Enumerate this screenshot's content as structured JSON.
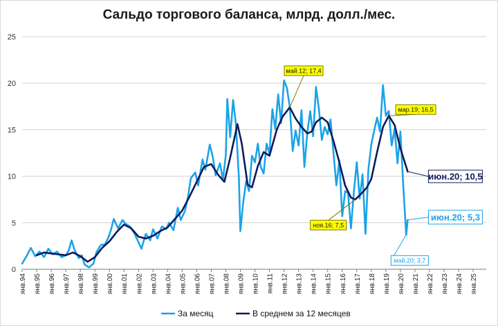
{
  "chart_data": {
    "type": "line",
    "title": "Сальдо торгового баланса, млрд. долл./мес.",
    "xlabel": "",
    "ylabel": "",
    "ylim": [
      0,
      25
    ],
    "yticks": [
      "0",
      "5",
      "10",
      "15",
      "20",
      "25"
    ],
    "xticks": [
      "янв.94",
      "янв.95",
      "янв.96",
      "янв.97",
      "янв.98",
      "янв.99",
      "янв.00",
      "янв.01",
      "янв.02",
      "янв.03",
      "янв.04",
      "янв.05",
      "янв.06",
      "янв.07",
      "янв.08",
      "янв.09",
      "янв.10",
      "янв.11",
      "янв.12",
      "янв.13",
      "янв.14",
      "янв.15",
      "янв.16",
      "янв.17",
      "янв.18",
      "янв.19",
      "янв.20",
      "янв.21",
      "янв.22",
      "янв.23",
      "янв.24",
      "янв.25"
    ],
    "grid": true,
    "legend": "bottom",
    "series": [
      {
        "name": "За месяц",
        "color": "#1aa3e8",
        "points": [
          [
            1994.0,
            0.6
          ],
          [
            1994.3,
            1.4
          ],
          [
            1994.6,
            2.3
          ],
          [
            1994.9,
            1.4
          ],
          [
            1995.2,
            1.9
          ],
          [
            1995.5,
            1.3
          ],
          [
            1995.8,
            2.2
          ],
          [
            1996.1,
            1.6
          ],
          [
            1996.4,
            1.9
          ],
          [
            1996.7,
            1.3
          ],
          [
            1997.0,
            1.5
          ],
          [
            1997.2,
            2.0
          ],
          [
            1997.4,
            3.1
          ],
          [
            1997.6,
            2.1
          ],
          [
            1997.9,
            1.2
          ],
          [
            1998.1,
            1.5
          ],
          [
            1998.3,
            0.5
          ],
          [
            1998.6,
            0.2
          ],
          [
            1998.9,
            0.6
          ],
          [
            1999.1,
            1.8
          ],
          [
            1999.4,
            2.6
          ],
          [
            1999.7,
            2.7
          ],
          [
            1999.9,
            3.3
          ],
          [
            2000.1,
            4.2
          ],
          [
            2000.3,
            5.4
          ],
          [
            2000.6,
            4.4
          ],
          [
            2000.9,
            5.3
          ],
          [
            2001.1,
            4.9
          ],
          [
            2001.4,
            4.6
          ],
          [
            2001.7,
            3.9
          ],
          [
            2002.0,
            2.9
          ],
          [
            2002.2,
            2.2
          ],
          [
            2002.5,
            3.8
          ],
          [
            2002.8,
            3.1
          ],
          [
            2003.0,
            4.3
          ],
          [
            2003.3,
            3.3
          ],
          [
            2003.6,
            4.6
          ],
          [
            2003.9,
            4.3
          ],
          [
            2004.1,
            5.0
          ],
          [
            2004.4,
            4.2
          ],
          [
            2004.7,
            6.6
          ],
          [
            2004.9,
            5.3
          ],
          [
            2005.2,
            6.3
          ],
          [
            2005.4,
            7.8
          ],
          [
            2005.6,
            9.8
          ],
          [
            2005.9,
            10.4
          ],
          [
            2006.1,
            9.0
          ],
          [
            2006.4,
            11.8
          ],
          [
            2006.6,
            10.7
          ],
          [
            2006.9,
            13.4
          ],
          [
            2007.1,
            12.1
          ],
          [
            2007.3,
            10.1
          ],
          [
            2007.6,
            11.4
          ],
          [
            2007.8,
            9.6
          ],
          [
            2008.0,
            12.3
          ],
          [
            2008.1,
            18.3
          ],
          [
            2008.3,
            14.2
          ],
          [
            2008.5,
            18.2
          ],
          [
            2008.7,
            15.5
          ],
          [
            2008.9,
            9.8
          ],
          [
            2009.0,
            4.1
          ],
          [
            2009.2,
            7.2
          ],
          [
            2009.4,
            9.5
          ],
          [
            2009.6,
            8.4
          ],
          [
            2009.8,
            12.2
          ],
          [
            2010.0,
            11.5
          ],
          [
            2010.2,
            13.5
          ],
          [
            2010.4,
            11.0
          ],
          [
            2010.6,
            10.3
          ],
          [
            2010.8,
            13.5
          ],
          [
            2011.0,
            12.4
          ],
          [
            2011.2,
            17.2
          ],
          [
            2011.4,
            15.1
          ],
          [
            2011.6,
            18.8
          ],
          [
            2011.8,
            15.7
          ],
          [
            2012.0,
            20.3
          ],
          [
            2012.2,
            19.5
          ],
          [
            2012.4,
            17.4
          ],
          [
            2012.6,
            12.7
          ],
          [
            2012.8,
            14.9
          ],
          [
            2013.0,
            13.3
          ],
          [
            2013.2,
            17.1
          ],
          [
            2013.4,
            11.0
          ],
          [
            2013.6,
            14.7
          ],
          [
            2013.8,
            17.0
          ],
          [
            2014.0,
            14.3
          ],
          [
            2014.2,
            19.6
          ],
          [
            2014.4,
            17.2
          ],
          [
            2014.6,
            13.9
          ],
          [
            2014.8,
            15.3
          ],
          [
            2015.0,
            14.5
          ],
          [
            2015.2,
            16.1
          ],
          [
            2015.4,
            12.6
          ],
          [
            2015.6,
            9.0
          ],
          [
            2015.8,
            11.7
          ],
          [
            2016.0,
            5.7
          ],
          [
            2016.2,
            8.4
          ],
          [
            2016.4,
            8.2
          ],
          [
            2016.6,
            4.4
          ],
          [
            2016.8,
            8.3
          ],
          [
            2017.0,
            11.5
          ],
          [
            2017.2,
            7.6
          ],
          [
            2017.4,
            10.2
          ],
          [
            2017.6,
            3.8
          ],
          [
            2017.8,
            10.7
          ],
          [
            2018.0,
            13.4
          ],
          [
            2018.2,
            14.9
          ],
          [
            2018.4,
            16.3
          ],
          [
            2018.6,
            14.8
          ],
          [
            2018.8,
            19.8
          ],
          [
            2019.0,
            16.5
          ],
          [
            2019.2,
            17.0
          ],
          [
            2019.4,
            13.3
          ],
          [
            2019.6,
            15.1
          ],
          [
            2019.8,
            11.4
          ],
          [
            2020.0,
            14.8
          ],
          [
            2020.2,
            8.9
          ],
          [
            2020.4,
            3.7
          ],
          [
            2020.5,
            5.3
          ]
        ]
      },
      {
        "name": "В среднем за 12 месяцев",
        "color": "#0e1a5a",
        "points": [
          [
            1995.0,
            1.5
          ],
          [
            1995.5,
            1.8
          ],
          [
            1996.0,
            1.7
          ],
          [
            1996.5,
            1.6
          ],
          [
            1997.0,
            1.5
          ],
          [
            1997.5,
            1.8
          ],
          [
            1998.0,
            1.4
          ],
          [
            1998.5,
            0.8
          ],
          [
            1999.0,
            1.3
          ],
          [
            1999.5,
            2.3
          ],
          [
            2000.0,
            3.0
          ],
          [
            2000.5,
            4.0
          ],
          [
            2001.0,
            4.8
          ],
          [
            2001.5,
            4.4
          ],
          [
            2002.0,
            3.5
          ],
          [
            2002.5,
            3.3
          ],
          [
            2003.0,
            3.6
          ],
          [
            2003.5,
            4.1
          ],
          [
            2004.0,
            4.5
          ],
          [
            2004.5,
            5.4
          ],
          [
            2005.0,
            6.3
          ],
          [
            2005.5,
            7.8
          ],
          [
            2006.0,
            9.4
          ],
          [
            2006.5,
            11.0
          ],
          [
            2007.0,
            11.3
          ],
          [
            2007.5,
            10.1
          ],
          [
            2007.9,
            9.4
          ],
          [
            2008.3,
            12.0
          ],
          [
            2008.8,
            15.6
          ],
          [
            2009.1,
            13.5
          ],
          [
            2009.5,
            9.1
          ],
          [
            2009.8,
            8.8
          ],
          [
            2010.2,
            11.1
          ],
          [
            2010.6,
            12.6
          ],
          [
            2011.0,
            12.2
          ],
          [
            2011.5,
            15.0
          ],
          [
            2011.9,
            16.4
          ],
          [
            2012.4,
            17.4
          ],
          [
            2012.8,
            16.2
          ],
          [
            2013.2,
            15.3
          ],
          [
            2013.6,
            14.6
          ],
          [
            2013.9,
            14.8
          ],
          [
            2014.2,
            15.8
          ],
          [
            2014.6,
            16.3
          ],
          [
            2015.0,
            15.8
          ],
          [
            2015.4,
            13.8
          ],
          [
            2015.8,
            11.5
          ],
          [
            2016.2,
            9.0
          ],
          [
            2016.6,
            7.7
          ],
          [
            2016.9,
            7.5
          ],
          [
            2017.3,
            8.1
          ],
          [
            2017.7,
            8.8
          ],
          [
            2018.0,
            9.7
          ],
          [
            2018.4,
            12.6
          ],
          [
            2018.8,
            15.3
          ],
          [
            2019.2,
            16.5
          ],
          [
            2019.6,
            15.5
          ],
          [
            2020.0,
            13.0
          ],
          [
            2020.5,
            10.5
          ]
        ]
      }
    ],
    "annotations": [
      {
        "text": "май.12; 17,4",
        "x": 2012.4,
        "y": 17.4,
        "series": "В среднем за 12 месяцев",
        "style": "yellow"
      },
      {
        "text": "мар.19; 16,5",
        "x": 2019.2,
        "y": 16.5,
        "series": "В среднем за 12 месяцев",
        "style": "yellow"
      },
      {
        "text": "ноя.16; 7,5",
        "x": 2016.9,
        "y": 7.5,
        "series": "В среднем за 12 месяцев",
        "style": "yellow"
      },
      {
        "text": "июн.20; 10,5",
        "x": 2020.5,
        "y": 10.5,
        "series": "В среднем за 12 месяцев",
        "style": "dark-box"
      },
      {
        "text": "июн.20; 5,3",
        "x": 2020.5,
        "y": 5.3,
        "series": "За месяц",
        "style": "blue-box"
      },
      {
        "text": "май.20; 3,7",
        "x": 2020.4,
        "y": 3.7,
        "series": "За месяц",
        "style": "blue-small"
      }
    ]
  }
}
